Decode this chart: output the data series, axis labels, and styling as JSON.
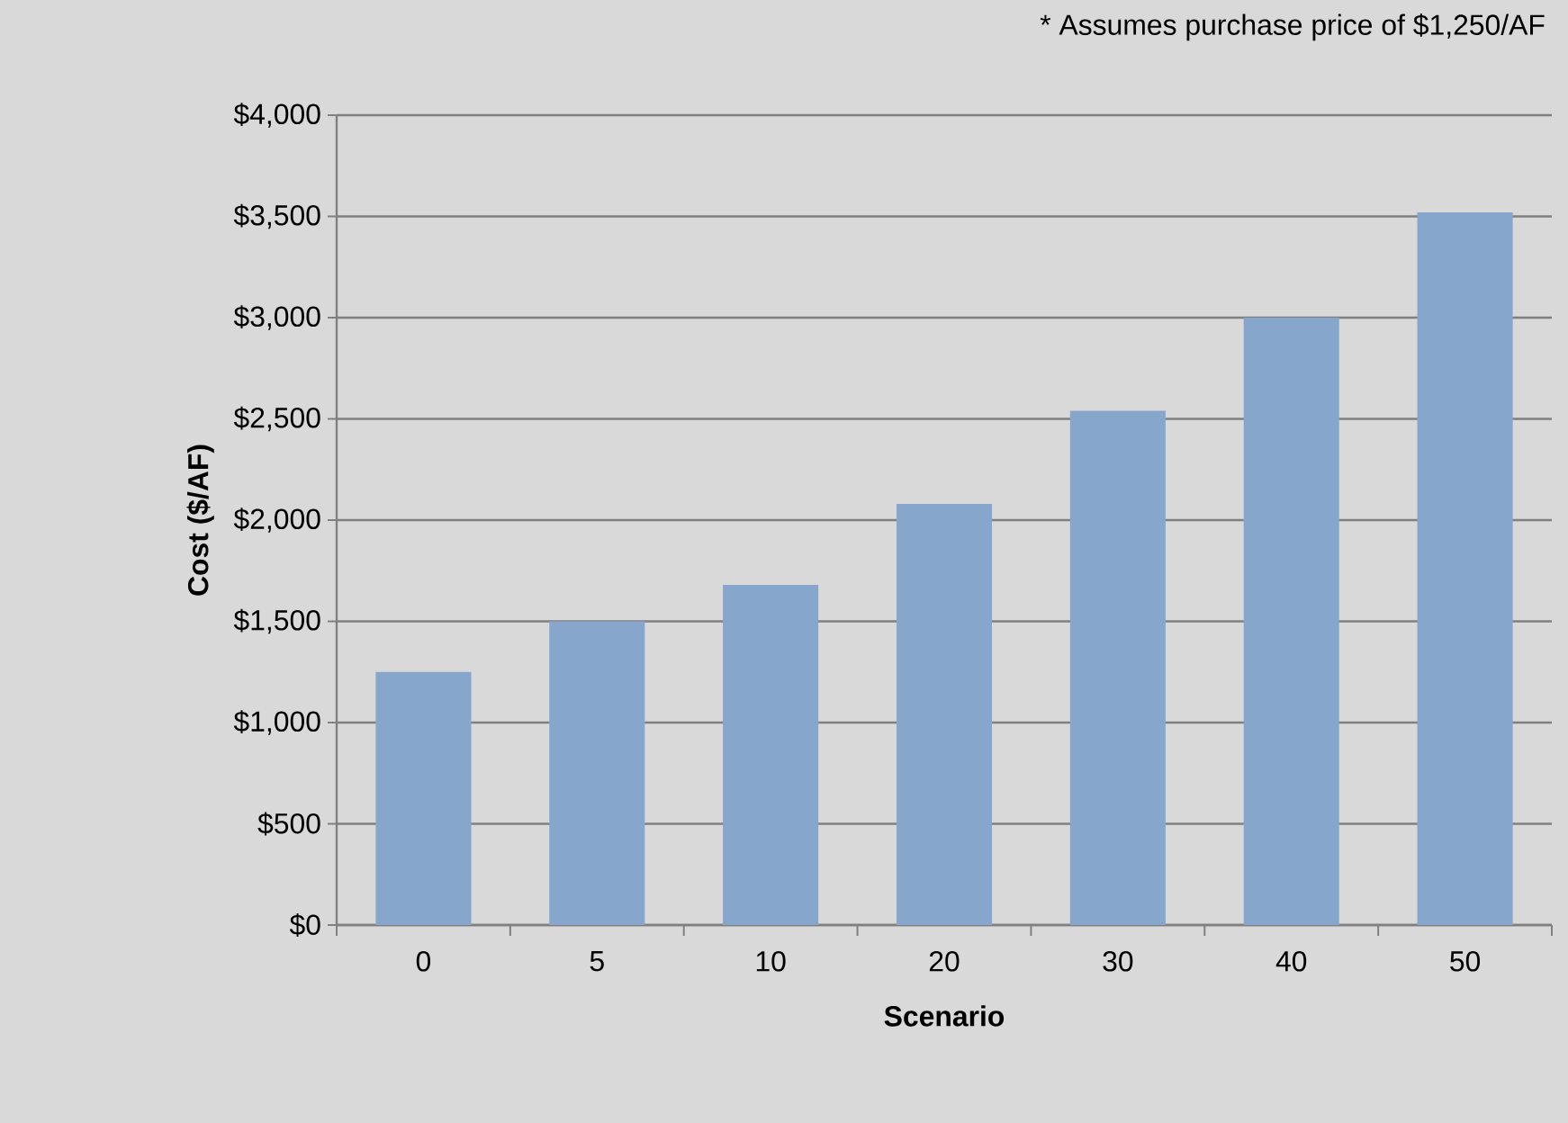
{
  "chart_data": {
    "type": "bar",
    "xlabel": "Scenario",
    "ylabel": "Cost ($/AF)",
    "annotations": [
      "* Assumes purchase price of $1,250/AF"
    ],
    "categories": [
      "0",
      "5",
      "10",
      "20",
      "30",
      "40",
      "50"
    ],
    "values": [
      1250,
      1500,
      1680,
      2080,
      2540,
      3000,
      3520
    ],
    "color": "#86a7cb",
    "ylim": [
      0,
      4000
    ],
    "yticks": [
      {
        "value": 0,
        "label": "$0"
      },
      {
        "value": 500,
        "label": "$500"
      },
      {
        "value": 1000,
        "label": "$1,000"
      },
      {
        "value": 1500,
        "label": "$1,500"
      },
      {
        "value": 2000,
        "label": "$2,000"
      },
      {
        "value": 2500,
        "label": "$2,500"
      },
      {
        "value": 3000,
        "label": "$3,000"
      },
      {
        "value": 3500,
        "label": "$3,500"
      },
      {
        "value": 4000,
        "label": "$4,000"
      }
    ],
    "grid": "y"
  }
}
